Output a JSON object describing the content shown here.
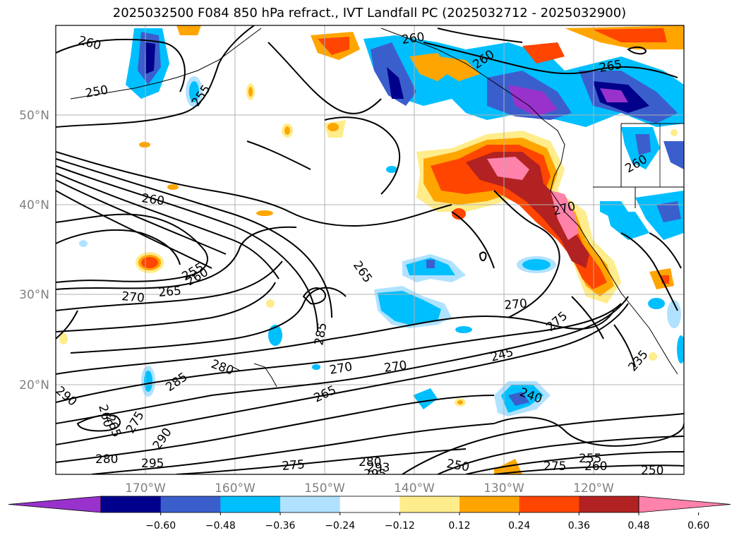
{
  "title": "2025032500 F084 850 hPa refract., IVT Landfall PC (2025032712 - 2025032900)",
  "lat_labels": [
    "50°N",
    "40°N",
    "30°N",
    "20°N"
  ],
  "lon_labels": [
    "170°W",
    "160°W",
    "150°W",
    "140°W",
    "130°W",
    "120°W"
  ],
  "contour_labels": [
    "260",
    "250",
    "255",
    "260",
    "260",
    "265",
    "260",
    "265",
    "270",
    "265",
    "255",
    "260",
    "285",
    "280",
    "285",
    "270",
    "245",
    "275",
    "270",
    "270",
    "235",
    "240",
    "265",
    "270",
    "260",
    "280",
    "290",
    "295",
    "275",
    "250",
    "290",
    "293",
    "295",
    "280",
    "275",
    "265",
    "260",
    "255",
    "250",
    "260",
    "275"
  ],
  "colorbar": {
    "ticks": [
      "−0.60",
      "−0.48",
      "−0.36",
      "−0.24",
      "−0.12",
      "0.12",
      "0.24",
      "0.36",
      "0.48",
      "0.60"
    ],
    "colors": [
      "#9932cc",
      "#00008b",
      "#3a5fcd",
      "#00bfff",
      "#b0e2ff",
      "#ffffff",
      "#ffec8b",
      "#ffa500",
      "#ff4500",
      "#b22222",
      "#ff82ab"
    ]
  }
}
